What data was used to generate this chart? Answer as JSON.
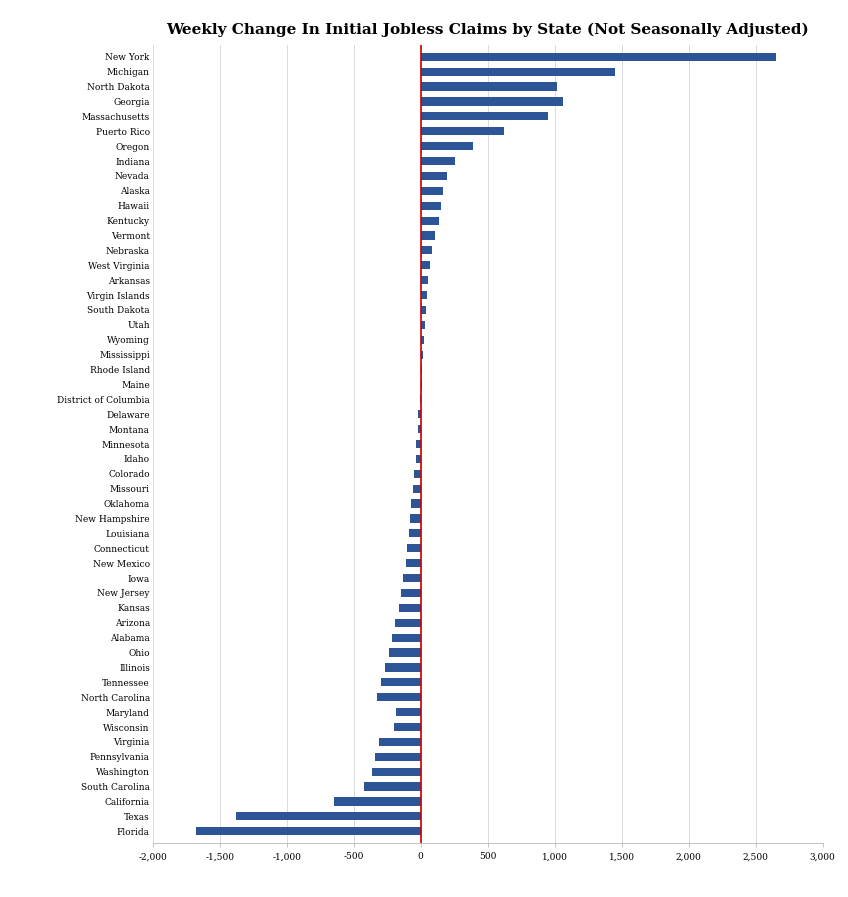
{
  "title": "Weekly Change In Initial Jobless Claims by State (Not Seasonally Adjusted)",
  "states": [
    "New York",
    "Michigan",
    "North Dakota",
    "Georgia",
    "Massachusetts",
    "Puerto Rico",
    "Oregon",
    "Indiana",
    "Nevada",
    "Alaska",
    "Hawaii",
    "Kentucky",
    "Vermont",
    "Nebraska",
    "West Virginia",
    "Arkansas",
    "Virgin Islands",
    "South Dakota",
    "Utah",
    "Wyoming",
    "Mississippi",
    "Rhode Island",
    "Maine",
    "District of Columbia",
    "Delaware",
    "Montana",
    "Minnesota",
    "Idaho",
    "Colorado",
    "Missouri",
    "Oklahoma",
    "New Hampshire",
    "Louisiana",
    "Connecticut",
    "New Mexico",
    "Iowa",
    "New Jersey",
    "Kansas",
    "Arizona",
    "Alabama",
    "Ohio",
    "Illinois",
    "Tennessee",
    "North Carolina",
    "Maryland",
    "Wisconsin",
    "Virginia",
    "Pennsylvania",
    "Washington",
    "South Carolina",
    "California",
    "Texas",
    "Florida"
  ],
  "values": [
    2650,
    1450,
    1020,
    1060,
    950,
    620,
    390,
    260,
    195,
    170,
    155,
    135,
    105,
    85,
    70,
    58,
    48,
    42,
    32,
    22,
    18,
    12,
    8,
    -8,
    -18,
    -22,
    -32,
    -38,
    -48,
    -58,
    -68,
    -78,
    -88,
    -98,
    -112,
    -128,
    -145,
    -162,
    -188,
    -215,
    -238,
    -265,
    -295,
    -325,
    -185,
    -195,
    -310,
    -340,
    -360,
    -420,
    -650,
    -1380,
    -1680
  ],
  "bar_color": "#2D5496",
  "zero_line_color": "#CC0000",
  "background_color": "#FFFFFF",
  "xlim": [
    -2000,
    3000
  ],
  "xticks": [
    -2000,
    -1500,
    -1000,
    -500,
    0,
    500,
    1000,
    1500,
    2000,
    2500,
    3000
  ],
  "xtick_labels": [
    "-2,000",
    "-1,500",
    "-1,000",
    "-500",
    "0",
    "500",
    "1,000",
    "1,500",
    "2,000",
    "2,500",
    "3,000"
  ],
  "title_fontsize": 11,
  "tick_fontsize": 6.5,
  "bar_height": 0.55
}
